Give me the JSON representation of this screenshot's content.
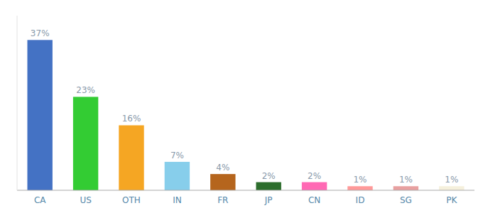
{
  "chart_data": {
    "type": "bar",
    "categories": [
      "CA",
      "US",
      "OTH",
      "IN",
      "FR",
      "JP",
      "CN",
      "ID",
      "SG",
      "PK"
    ],
    "values": [
      37,
      23,
      16,
      7,
      4,
      2,
      2,
      1,
      1,
      1
    ],
    "value_labels": [
      "37%",
      "23%",
      "16%",
      "7%",
      "4%",
      "2%",
      "2%",
      "1%",
      "1%",
      "1%"
    ],
    "colors": [
      "#4472c4",
      "#33cc33",
      "#f5a623",
      "#87ceeb",
      "#b5651d",
      "#2d6e2d",
      "#ff69b4",
      "#ff9999",
      "#e8a0a0",
      "#f5f0dc"
    ],
    "ylim": [
      0,
      43
    ],
    "data_labels": true,
    "tick_labels": "x",
    "grid": false
  }
}
